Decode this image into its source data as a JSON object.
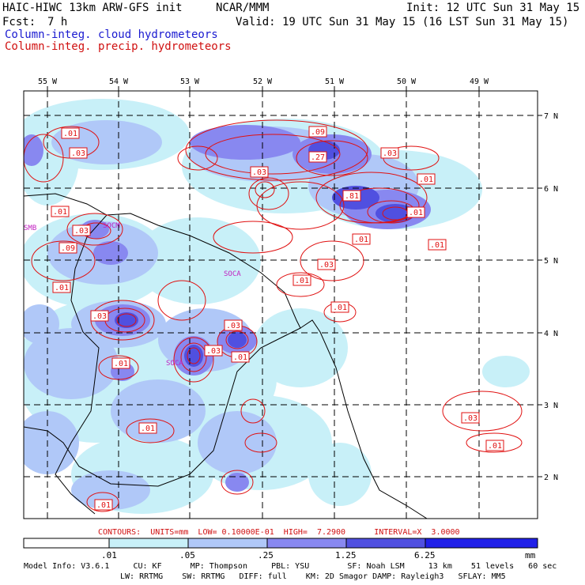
{
  "header": {
    "title_left": "HAIC-HIWC 13km ARW-GFS init",
    "org": "NCAR/MMM",
    "init": "Init: 12 UTC Sun 31 May 15",
    "fcst_label": "Fcst:",
    "fcst_value": "7 h",
    "valid": "Valid: 19 UTC Sun 31 May 15 (16 LST Sun 31 May 15)",
    "legend_cloud": "Column-integ. cloud hydrometeors",
    "legend_precip": "Column-integ. precip. hydrometeors"
  },
  "map": {
    "lon_labels": [
      "55 W",
      "54 W",
      "53 W",
      "52 W",
      "51 W",
      "50 W",
      "49 W"
    ],
    "lat_labels": [
      "7 N",
      "6 N",
      "5 N",
      "4 N",
      "3 N",
      "2 N"
    ],
    "station_labels": [
      "SMB",
      "SOCM",
      "SOCA",
      "SOCA"
    ],
    "contour_labels": [
      ".01",
      ".03",
      ".09",
      ".03",
      ".27",
      ".01",
      ".03",
      ".01",
      ".81",
      ".01",
      ".03",
      ".01",
      ".01",
      ".03",
      ".09",
      ".03",
      ".01",
      ".01",
      ".03",
      ".03",
      ".01",
      ".01",
      ".01",
      ".01",
      ".01",
      ".03",
      ".01"
    ]
  },
  "contour_info": "CONTOURS:  UNITS=mm  LOW= 0.10000E-01  HIGH=  7.2900      INTERVAL=X  3.0000",
  "colorbar": {
    "ticks": [
      ".01",
      ".05",
      ".25",
      "1.25",
      "6.25"
    ],
    "unit": "mm",
    "colors": [
      "#ffffff",
      "#c8f0f8",
      "#b0c8f8",
      "#8888f0",
      "#5050e0",
      "#2020e8"
    ]
  },
  "model_info": {
    "line1": "Model Info: V3.6.1     CU: KF      MP: Thompson     PBL: YSU        SF: Noah LSM     13 km    51 levels   60 sec",
    "line2": "LW: RRTMG    SW: RRTMG   DIFF: full    KM: 2D Smagor DAMP: Rayleigh3   SFLAY: MM5"
  }
}
